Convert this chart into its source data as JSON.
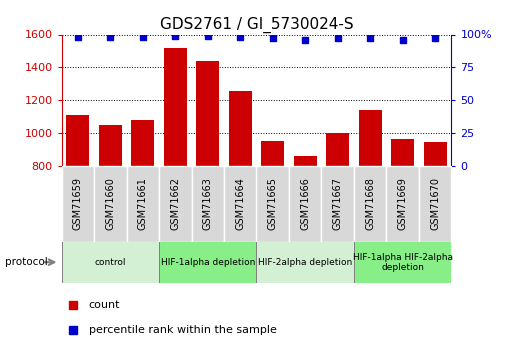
{
  "title": "GDS2761 / GI_5730024-S",
  "samples": [
    "GSM71659",
    "GSM71660",
    "GSM71661",
    "GSM71662",
    "GSM71663",
    "GSM71664",
    "GSM71665",
    "GSM71666",
    "GSM71667",
    "GSM71668",
    "GSM71669",
    "GSM71670"
  ],
  "counts": [
    1110,
    1050,
    1080,
    1520,
    1440,
    1255,
    950,
    860,
    1000,
    1140,
    960,
    945
  ],
  "percentile_ranks": [
    98,
    98,
    98,
    99,
    99,
    98,
    97,
    96,
    97,
    97,
    96,
    97
  ],
  "ylim_left": [
    800,
    1600
  ],
  "ylim_right": [
    0,
    100
  ],
  "yticks_left": [
    800,
    1000,
    1200,
    1400,
    1600
  ],
  "yticks_right": [
    0,
    25,
    50,
    75,
    100
  ],
  "bar_color": "#cc0000",
  "dot_color": "#0000cc",
  "protocol_groups": [
    {
      "label": "control",
      "indices": [
        0,
        1,
        2
      ],
      "color": "#d4f0d4"
    },
    {
      "label": "HIF-1alpha depletion",
      "indices": [
        3,
        4,
        5
      ],
      "color": "#88ee88"
    },
    {
      "label": "HIF-2alpha depletion",
      "indices": [
        6,
        7,
        8
      ],
      "color": "#d4f0d4"
    },
    {
      "label": "HIF-1alpha HIF-2alpha\ndepletion",
      "indices": [
        9,
        10,
        11
      ],
      "color": "#88ee88"
    }
  ],
  "legend_count_label": "count",
  "legend_pct_label": "percentile rank within the sample",
  "protocol_label": "protocol",
  "title_fontsize": 11,
  "tick_fontsize": 8,
  "sample_fontsize": 7
}
